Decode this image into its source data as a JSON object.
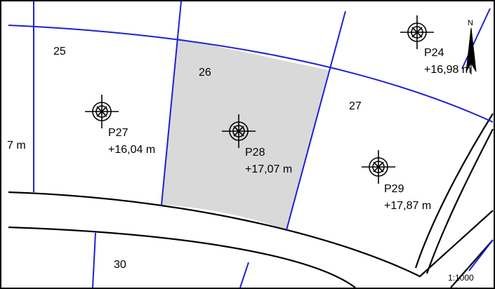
{
  "map": {
    "highlight_color": "#d9d9d9",
    "boundary_color": "#1f1fd6",
    "road_color": "#000000",
    "parcels": [
      {
        "id": "25",
        "label": "25"
      },
      {
        "id": "26",
        "label": "26",
        "highlighted": true
      },
      {
        "id": "27",
        "label": "27"
      },
      {
        "id": "30",
        "label": "30"
      }
    ],
    "points": [
      {
        "id": "P24",
        "name": "P24",
        "elevation": "+16,98 m"
      },
      {
        "id": "P27",
        "name": "P27",
        "elevation": "+16,04 m"
      },
      {
        "id": "P28",
        "name": "P28",
        "elevation": "+17,07 m"
      },
      {
        "id": "P29",
        "name": "P29",
        "elevation": "+17,87 m"
      }
    ],
    "edge_fragment": "7 m",
    "north_label": "N",
    "scale": "1:1000",
    "point_icon": "survey-crosshair-icon",
    "north_icon": "north-arrow-icon"
  }
}
